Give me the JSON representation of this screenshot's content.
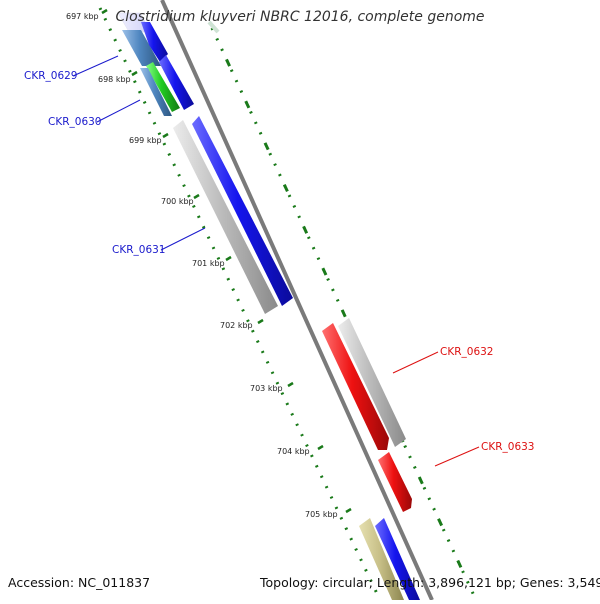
{
  "header": {
    "title": "Clostridium kluyveri NBRC 12016, complete genome"
  },
  "footer": {
    "accession": "Accession: NC_011837",
    "summary": "Topology: circular; Length: 3,896,121 bp; Genes: 3,549"
  },
  "ticks": [
    {
      "label": "697 kbp"
    },
    {
      "label": "698 kbp"
    },
    {
      "label": "699 kbp"
    },
    {
      "label": "700 kbp"
    },
    {
      "label": "701 kbp"
    },
    {
      "label": "702 kbp"
    },
    {
      "label": "703 kbp"
    },
    {
      "label": "704 kbp"
    },
    {
      "label": "705 kbp"
    }
  ],
  "genes": [
    {
      "id": "CKR_0629",
      "label": "CKR_0629",
      "strand": "minus",
      "color": "#1515ee"
    },
    {
      "id": "CKR_0630",
      "label": "CKR_0630",
      "strand": "minus",
      "color": "#1515ee"
    },
    {
      "id": "CKR_0631",
      "label": "CKR_0631",
      "strand": "minus",
      "color": "#1515ee"
    },
    {
      "id": "CKR_0632",
      "label": "CKR_0632",
      "strand": "plus",
      "color": "#ee1111"
    },
    {
      "id": "CKR_0633",
      "label": "CKR_0633",
      "strand": "plus",
      "color": "#ee1111"
    }
  ],
  "colors": {
    "backbone": "#7a7a7a",
    "tick": "#1a7a1a",
    "cds": "#1515ee",
    "cds_plus": "#ee1111",
    "rna": "#22cc22",
    "pseudo": "#bbbbbb",
    "other": "#c8c088",
    "gene_label_minus": "#1a1acc",
    "gene_label_plus": "#dd1111"
  }
}
